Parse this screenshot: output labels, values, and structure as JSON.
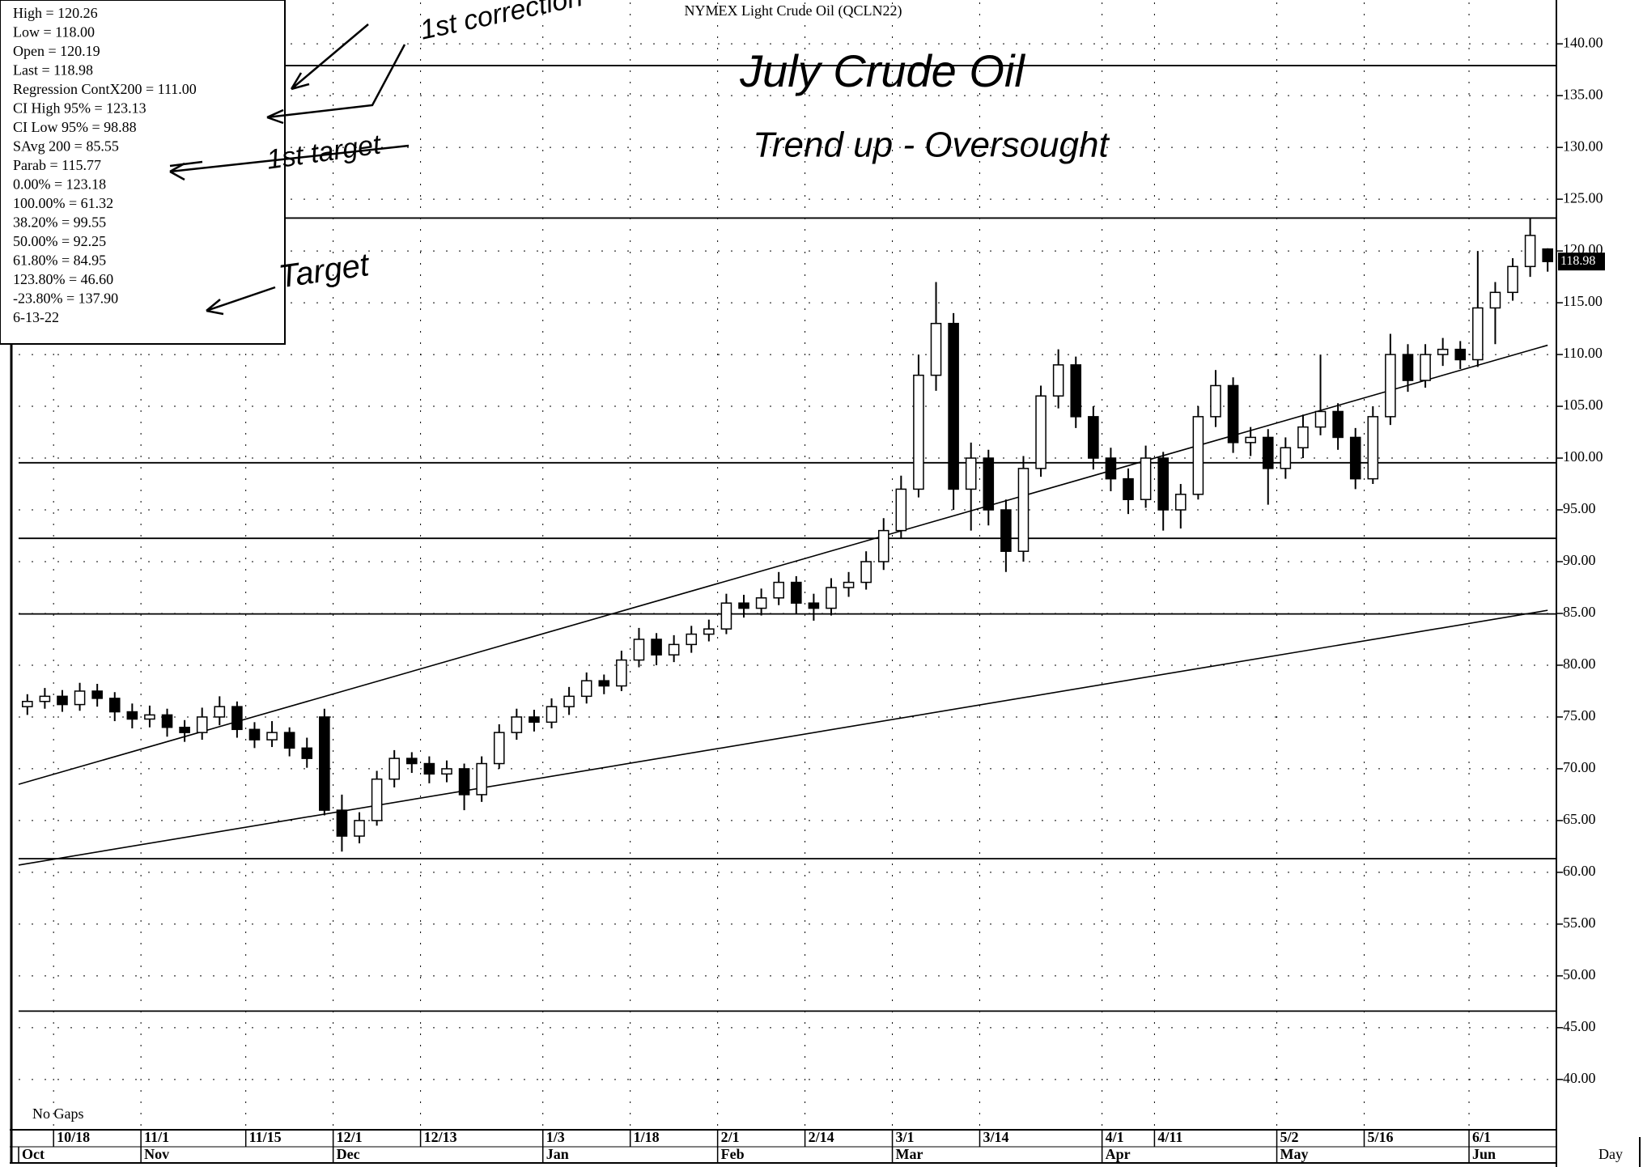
{
  "chart_data": {
    "type": "candlestick",
    "title": "NYMEX Light Crude Oil (QCLN22)",
    "categories": [
      null,
      null,
      "10/18",
      null,
      null,
      null,
      null,
      "11/1",
      null,
      null,
      null,
      null,
      null,
      "11/15",
      null,
      null,
      null,
      null,
      "12/1",
      null,
      null,
      null,
      null,
      "12/13",
      null,
      null,
      null,
      null,
      null,
      null,
      "1/3",
      null,
      null,
      null,
      null,
      "1/18",
      null,
      null,
      null,
      null,
      "2/1",
      null,
      null,
      null,
      null,
      "2/14",
      null,
      null,
      null,
      null,
      "3/1",
      null,
      null,
      null,
      null,
      "3/14",
      null,
      null,
      null,
      null,
      null,
      null,
      "4/1",
      null,
      null,
      "4/11",
      null,
      null,
      null,
      null,
      null,
      null,
      "5/2",
      null,
      null,
      null,
      null,
      "5/16",
      null,
      null,
      null,
      null,
      null,
      "6/1",
      null,
      null,
      null,
      null
    ],
    "months": [
      "Oct",
      null,
      null,
      null,
      null,
      null,
      null,
      "Nov",
      null,
      null,
      null,
      null,
      null,
      null,
      null,
      null,
      null,
      null,
      "Dec",
      null,
      null,
      null,
      null,
      null,
      null,
      null,
      null,
      null,
      null,
      null,
      "Jan",
      null,
      null,
      null,
      null,
      null,
      null,
      null,
      null,
      null,
      "Feb",
      null,
      null,
      null,
      null,
      null,
      null,
      null,
      null,
      null,
      "Mar",
      null,
      null,
      null,
      null,
      null,
      null,
      null,
      null,
      null,
      null,
      null,
      "Apr",
      null,
      null,
      null,
      null,
      null,
      null,
      null,
      null,
      null,
      "May",
      null,
      null,
      null,
      null,
      null,
      null,
      null,
      null,
      null,
      null,
      "Jun",
      null,
      null,
      null,
      null
    ],
    "open": [
      76.0,
      76.5,
      77.0,
      76.2,
      77.5,
      76.8,
      75.5,
      74.8,
      75.2,
      74.0,
      73.5,
      75.0,
      76.0,
      73.8,
      72.8,
      73.5,
      72.0,
      75.0,
      66.0,
      63.5,
      65.0,
      69.0,
      71.0,
      70.5,
      69.5,
      70.0,
      67.5,
      70.5,
      73.5,
      75.0,
      74.5,
      76.0,
      77.0,
      78.5,
      78.0,
      80.5,
      82.5,
      81.0,
      82.0,
      83.0,
      83.5,
      86.0,
      85.5,
      86.5,
      88.0,
      86.0,
      85.5,
      87.5,
      88.0,
      90.0,
      93.0,
      97.0,
      108.0,
      113.0,
      97.0,
      100.0,
      95.0,
      91.0,
      99.0,
      106.0,
      109.0,
      104.0,
      100.0,
      98.0,
      96.0,
      100.0,
      95.0,
      96.5,
      104.0,
      107.0,
      101.5,
      102.0,
      99.0,
      101.0,
      103.0,
      104.5,
      102.0,
      98.0,
      104.0,
      110.0,
      107.5,
      110.0,
      110.5,
      109.5,
      114.5,
      116.0,
      118.5,
      120.19
    ],
    "high": [
      77.2,
      77.8,
      77.6,
      78.3,
      78.2,
      77.4,
      76.3,
      76.1,
      75.8,
      74.7,
      75.9,
      77.0,
      76.5,
      74.5,
      74.6,
      74.0,
      73.0,
      75.8,
      67.5,
      65.8,
      69.8,
      71.8,
      71.6,
      71.2,
      70.8,
      70.5,
      71.2,
      74.3,
      75.8,
      75.7,
      76.8,
      77.9,
      79.3,
      79.1,
      81.4,
      83.6,
      83.1,
      82.9,
      83.8,
      84.4,
      86.9,
      86.8,
      87.4,
      89.0,
      88.6,
      86.9,
      88.4,
      89.0,
      91.0,
      94.2,
      98.3,
      110.0,
      117.0,
      114.0,
      101.5,
      100.8,
      96.0,
      100.2,
      107.0,
      110.5,
      109.8,
      105.0,
      101.0,
      99.0,
      101.2,
      100.6,
      97.5,
      105.0,
      108.5,
      107.8,
      103.0,
      102.8,
      102.0,
      104.2,
      110.0,
      105.3,
      102.9,
      105.0,
      112.0,
      111.0,
      111.0,
      111.6,
      111.3,
      120.0,
      117.0,
      119.3,
      123.2,
      120.26
    ],
    "low": [
      75.2,
      75.8,
      75.5,
      75.6,
      76.0,
      74.6,
      73.9,
      74.0,
      73.1,
      72.6,
      72.8,
      74.2,
      73.0,
      72.0,
      72.1,
      71.2,
      70.1,
      65.5,
      62.0,
      62.8,
      64.5,
      68.2,
      69.6,
      68.6,
      68.7,
      66.0,
      66.8,
      70.0,
      72.8,
      73.6,
      73.9,
      75.2,
      76.3,
      77.2,
      77.5,
      79.8,
      80.0,
      80.3,
      81.2,
      82.3,
      83.0,
      84.6,
      84.8,
      85.8,
      85.0,
      84.3,
      84.8,
      86.6,
      87.3,
      89.2,
      92.2,
      96.2,
      106.5,
      95.0,
      93.0,
      93.5,
      89.0,
      90.0,
      98.2,
      104.8,
      102.9,
      98.9,
      96.8,
      94.6,
      95.2,
      93.0,
      93.2,
      96.0,
      103.0,
      100.5,
      100.2,
      95.5,
      98.0,
      100.0,
      102.2,
      100.8,
      97.0,
      97.5,
      103.2,
      106.4,
      106.8,
      108.9,
      108.6,
      108.8,
      111.0,
      115.2,
      117.5,
      118.0
    ],
    "close": [
      76.5,
      77.0,
      76.2,
      77.5,
      76.8,
      75.5,
      74.8,
      75.2,
      74.0,
      73.5,
      75.0,
      76.0,
      73.8,
      72.8,
      73.5,
      72.0,
      71.0,
      66.0,
      63.5,
      65.0,
      69.0,
      71.0,
      70.5,
      69.5,
      70.0,
      67.5,
      70.5,
      73.5,
      75.0,
      74.5,
      76.0,
      77.0,
      78.5,
      78.0,
      80.5,
      82.5,
      81.0,
      82.0,
      83.0,
      83.5,
      86.0,
      85.5,
      86.5,
      88.0,
      86.0,
      85.5,
      87.5,
      88.0,
      90.0,
      93.0,
      97.0,
      108.0,
      113.0,
      97.0,
      100.0,
      95.0,
      91.0,
      99.0,
      106.0,
      109.0,
      104.0,
      100.0,
      98.0,
      96.0,
      100.0,
      95.0,
      96.5,
      104.0,
      107.0,
      101.5,
      102.0,
      99.0,
      101.0,
      103.0,
      104.5,
      102.0,
      98.0,
      104.0,
      110.0,
      107.5,
      110.0,
      110.5,
      109.5,
      114.5,
      116.0,
      118.5,
      121.5,
      118.98
    ],
    "levels": [
      137.9,
      123.18,
      99.55,
      92.25,
      84.95,
      61.32,
      46.6
    ],
    "trend_lines": [
      {
        "start": 68.5,
        "end": 110.9
      },
      {
        "start": 60.7,
        "end": 85.3
      }
    ],
    "last_price": {
      "value": 118.98,
      "label": "118.98"
    },
    "ylim": [
      36,
      144
    ],
    "yticks": [
      {
        "value": 40,
        "label": "40.00"
      },
      {
        "value": 45,
        "label": "45.00"
      },
      {
        "value": 50,
        "label": "50.00"
      },
      {
        "value": 55,
        "label": "55.00"
      },
      {
        "value": 60,
        "label": "60.00"
      },
      {
        "value": 65,
        "label": "65.00"
      },
      {
        "value": 70,
        "label": "70.00"
      },
      {
        "value": 75,
        "label": "75.00"
      },
      {
        "value": 80,
        "label": "80.00"
      },
      {
        "value": 85,
        "label": "85.00"
      },
      {
        "value": 90,
        "label": "90.00"
      },
      {
        "value": 95,
        "label": "95.00"
      },
      {
        "value": 100,
        "label": "100.00"
      },
      {
        "value": 105,
        "label": "105.00"
      },
      {
        "value": 110,
        "label": "110.00"
      },
      {
        "value": 115,
        "label": "115.00"
      },
      {
        "value": 120,
        "label": "120.00"
      },
      {
        "value": 125,
        "label": "125.00"
      },
      {
        "value": 130,
        "label": "130.00"
      },
      {
        "value": 135,
        "label": "135.00"
      },
      {
        "value": 140,
        "label": "140.00"
      }
    ],
    "grid": true,
    "info_box": [
      "High = 120.26",
      "Low = 118.00",
      "Open = 120.19",
      "Last = 118.98",
      "Regression ContX200 = 111.00",
      "CI High 95% = 123.13",
      "CI Low 95% = 98.88",
      "SAvg 200 = 85.55",
      "Parab = 115.77",
      "0.00% = 123.18",
      "100.00% = 61.32",
      "38.20% = 99.55",
      "50.00% = 92.25",
      "61.80% = 84.95",
      "123.80% = 46.60",
      "-23.80% = 137.90",
      "6-13-22"
    ],
    "notes": {
      "gaps": "No Gaps",
      "period": "Day",
      "hand_title": "July Crude Oil",
      "hand_trend": "Trend up - Oversought",
      "hand_correction": "1st correction",
      "hand_first_target": "1st target",
      "hand_target": "Target"
    }
  }
}
